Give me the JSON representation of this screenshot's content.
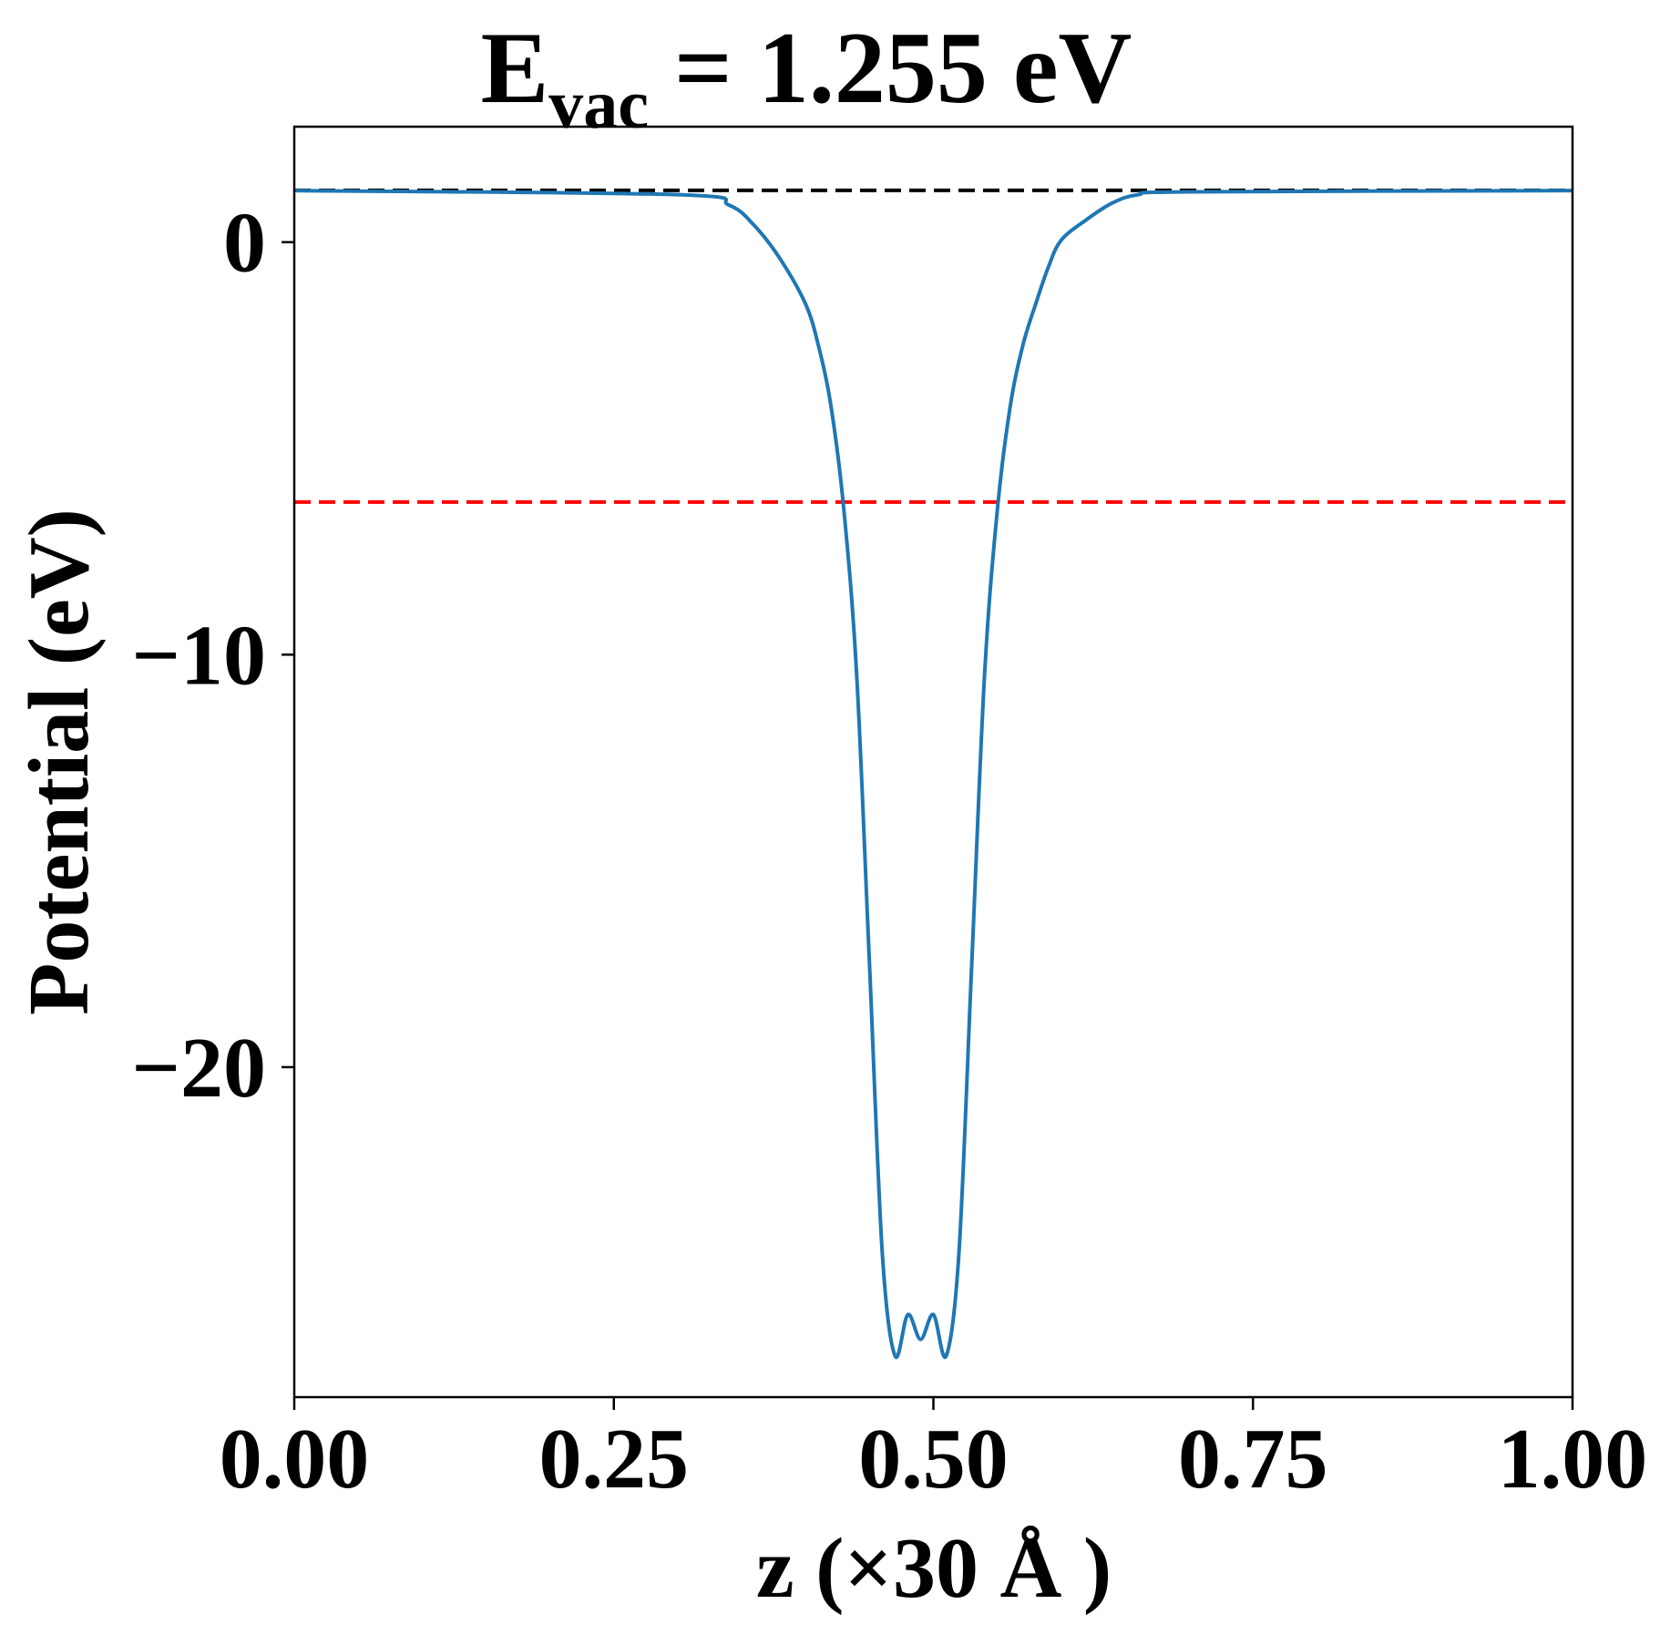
{
  "chart_data": {
    "type": "line",
    "title_main": "E",
    "title_sub": "vac",
    "title_rest": " = 1.255 eV",
    "xlabel": "z (×30 Å )",
    "ylabel": "Potential (eV)",
    "xlim": [
      0,
      1
    ],
    "ylim": [
      -28,
      2.8
    ],
    "x_ticks": [
      0,
      0.25,
      0.5,
      0.75,
      1
    ],
    "x_tick_labels": [
      "0.00",
      "0.25",
      "0.50",
      "0.75",
      "1.00"
    ],
    "y_ticks": [
      0,
      -10,
      -20
    ],
    "y_tick_labels": [
      "0",
      "−10",
      "−20"
    ],
    "grid": false,
    "colors": {
      "series": "#1f77b4",
      "vacuum_line": "#000000",
      "fermi_line": "#ff0000"
    },
    "hlines": [
      {
        "y": 1.255,
        "color": "#000000",
        "style": "dashed"
      },
      {
        "y": -6.3,
        "color": "#ff0000",
        "style": "dashed"
      }
    ],
    "series": [
      {
        "x": [
          0,
          0.3,
          0.34,
          0.36,
          0.38,
          0.4,
          0.41,
          0.42,
          0.43,
          0.44,
          0.45,
          0.46,
          0.47,
          0.48,
          0.49,
          0.5,
          0.51,
          0.52,
          0.53,
          0.54,
          0.55,
          0.56,
          0.57,
          0.58,
          0.59,
          0.6,
          0.62,
          0.64,
          0.66,
          0.7,
          1.0
        ],
        "y": [
          1.25,
          1.15,
          0.9,
          0.4,
          -0.4,
          -1.5,
          -2.5,
          -4.0,
          -6.5,
          -10.5,
          -17.5,
          -24.5,
          -27.0,
          -26.0,
          -26.6,
          -26.0,
          -27.0,
          -24.5,
          -17.5,
          -10.5,
          -6.5,
          -4.0,
          -2.5,
          -1.5,
          -0.6,
          0.05,
          0.55,
          0.95,
          1.15,
          1.22,
          1.25
        ]
      }
    ]
  }
}
